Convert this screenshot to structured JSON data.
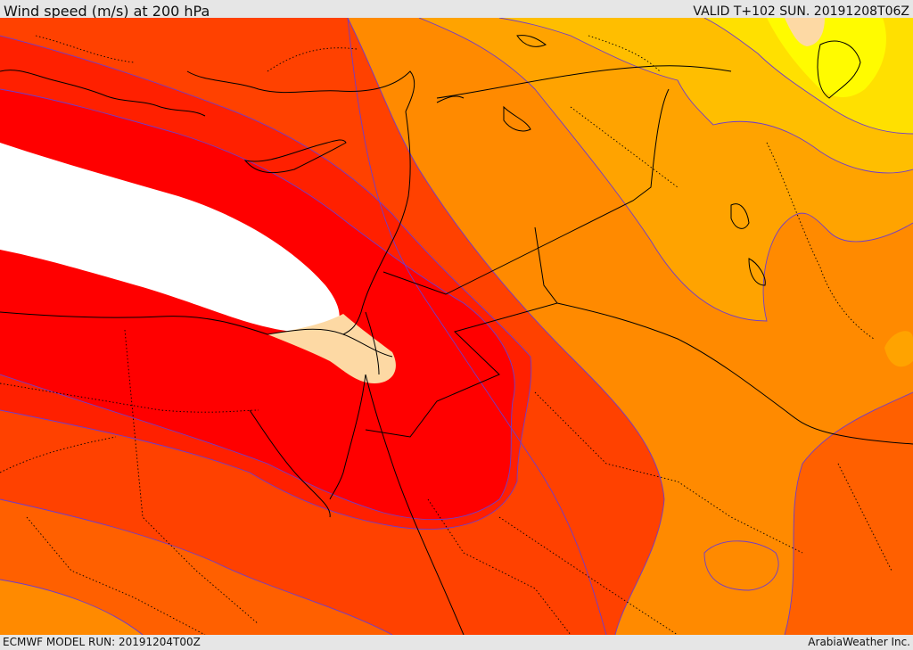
{
  "header": {
    "title": "Wind speed (m/s) at 200 hPa",
    "valid_time": "VALID T+102 SUN. 20191208T06Z"
  },
  "footer": {
    "model_run": "ECMWF MODEL RUN: 20191204T00Z",
    "credit": "ArabiaWeather Inc."
  },
  "map": {
    "field": "wind speed",
    "level": "200 hPa",
    "units": "m/s",
    "palette": {
      "jet_core": "#ffffff",
      "highest_band": "#ff0000",
      "very_high_band": "#ff2000",
      "high_band": "#ff4100",
      "mid_high_band": "#ff6000",
      "mid_band": "#ff8a00",
      "mid_low_band": "#ffa300",
      "low_band": "#ffbe00",
      "lower_band": "#ffe000",
      "lowest_band": "#fffb00",
      "calm_patch": "#fdd9a4",
      "isotach_line": "#6e3ccc",
      "border_line": "#000000"
    }
  }
}
